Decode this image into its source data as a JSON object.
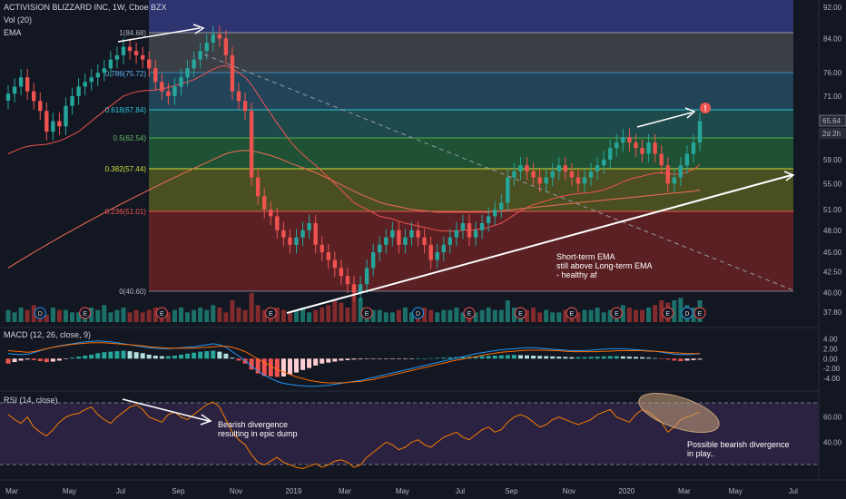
{
  "header": {
    "title": "ACTIVISION BLIZZARD INC, 1W, Cboe BZX",
    "vol": "Vol (20)",
    "ema": "EMA",
    "macd": "MACD (12, 26, close, 9)",
    "rsi": "RSI (14, close)"
  },
  "price_tags": {
    "last": "65.64",
    "countdown": "2d 2h"
  },
  "colors": {
    "bg": "#131722",
    "up": "#26a69a",
    "down": "#ef5350",
    "ema_short": "#ef5350",
    "ema_long": "#ef6c54",
    "macd_line": "#2196f3",
    "signal_line": "#ff6d00",
    "rsi_line": "#f57c00",
    "rsi_band": "#2a2240",
    "trend": "#ffffff"
  },
  "chart_data": [
    {
      "type": "candlestick",
      "title": "ACTIVISION BLIZZARD INC, 1W, Cboe BZX",
      "scale": "log",
      "x_tick_labels": [
        "Mar",
        "May",
        "Jul",
        "Sep",
        "Nov",
        "2019",
        "Mar",
        "May",
        "Jul",
        "Sep",
        "Nov",
        "2020",
        "Mar",
        "May",
        "Jul"
      ],
      "y_tick_labels": [
        "92.00",
        "84.00",
        "76.00",
        "71.00",
        "65.64",
        "59.00",
        "55.00",
        "51.00",
        "48.00",
        "45.00",
        "42.50",
        "40.00",
        "37.80"
      ],
      "ylim": [
        37.5,
        93
      ],
      "grid": false,
      "close_series": [
        71.5,
        73,
        75,
        72,
        70,
        68,
        64,
        66,
        65,
        69,
        71,
        73,
        74,
        75,
        76,
        77,
        79,
        80,
        82,
        81,
        80,
        79,
        77,
        74,
        72,
        71,
        73,
        75,
        77,
        79,
        81,
        83,
        85,
        84,
        80,
        72,
        70,
        68,
        56,
        53,
        51,
        50,
        48,
        47,
        46,
        47,
        48,
        49,
        46,
        45,
        44,
        43,
        42,
        41,
        40,
        41,
        43,
        45,
        46,
        47,
        48,
        46,
        47,
        48,
        47,
        46,
        44,
        45,
        46,
        47,
        48,
        49,
        47,
        48,
        49,
        50,
        51,
        52,
        56,
        57,
        58,
        57,
        56,
        55,
        56,
        57,
        58,
        57,
        56,
        55,
        56,
        57,
        58,
        59,
        61,
        62,
        63,
        62,
        61,
        60,
        62,
        60,
        58,
        55,
        56,
        58,
        60,
        62,
        66
      ],
      "ema_short": [
        60,
        60.5,
        61,
        61.3,
        61.5,
        61.6,
        61.7,
        62,
        62.3,
        62.8,
        63.4,
        64,
        65,
        66,
        67,
        68,
        69,
        70,
        71,
        71.5,
        71.9,
        72.1,
        72.2,
        72.3,
        72.5,
        72.8,
        73.2,
        73.6,
        74,
        74.5,
        75.2,
        76,
        76.8,
        77.4,
        77.6,
        76.9,
        76,
        75,
        73.4,
        71.3,
        69.3,
        67.4,
        65.6,
        63.9,
        62.3,
        61,
        59.9,
        58.9,
        58,
        57,
        56,
        55,
        54,
        53,
        52,
        51.5,
        51,
        50.5,
        50,
        49.8,
        49.6,
        49.3,
        49,
        48.8,
        48.6,
        48.4,
        48.2,
        48,
        47.9,
        47.9,
        47.9,
        48,
        48,
        48.1,
        48.2,
        48.4,
        48.7,
        49,
        49.6,
        50.2,
        50.8,
        51.3,
        51.7,
        52,
        52.3,
        52.6,
        52.9,
        53.1,
        53.3,
        53.4,
        53.5,
        53.6,
        53.8,
        54,
        54.4,
        54.8,
        55.3,
        55.7,
        56,
        56.2,
        56.5,
        56.7,
        56.8,
        56.6,
        56.5,
        56.6,
        56.9,
        57.3,
        58.1
      ],
      "ema_long": [
        43,
        43.5,
        44,
        44.5,
        45,
        45.5,
        46,
        46.5,
        47,
        47.5,
        48,
        48.5,
        49,
        49.5,
        50,
        50.5,
        51,
        51.5,
        52,
        52.5,
        53,
        53.5,
        54,
        54.5,
        55,
        55.5,
        56,
        56.5,
        57,
        57.5,
        58,
        58.5,
        59,
        59.5,
        60,
        60.3,
        60.5,
        60.6,
        60.5,
        60.3,
        60,
        59.7,
        59.3,
        58.9,
        58.4,
        58,
        57.6,
        57.2,
        56.8,
        56.3,
        55.8,
        55.3,
        54.8,
        54.3,
        53.8,
        53.3,
        52.9,
        52.5,
        52.1,
        51.8,
        51.6,
        51.4,
        51.2,
        51,
        50.9,
        50.8,
        50.7,
        50.6,
        50.6,
        50.6,
        50.6,
        50.6,
        50.6,
        50.6,
        50.6,
        50.6,
        50.7,
        50.8,
        50.9,
        51,
        51.1,
        51.2,
        51.3,
        51.4,
        51.5,
        51.6,
        51.7,
        51.8,
        51.9,
        52,
        52.1,
        52.2,
        52.3,
        52.4,
        52.5,
        52.6,
        52.7,
        52.8,
        52.9,
        53,
        53.1,
        53.2,
        53.3,
        53.4,
        53.5,
        53.6,
        53.7,
        53.8,
        54
      ],
      "fib_levels": [
        {
          "label": "1(84.68)",
          "value": 84.68
        },
        {
          "label": "0.786(75.72)",
          "value": 75.72
        },
        {
          "label": "0.618(67.84)",
          "value": 67.84
        },
        {
          "label": "0.5(62.54)",
          "value": 62.54
        },
        {
          "label": "0.382(57.44)",
          "value": 57.44
        },
        {
          "label": "0.236(51.01)",
          "value": 51.01
        },
        {
          "label": "0(40.60)",
          "value": 40.6
        }
      ],
      "event_markers": [
        "D",
        "E",
        "E",
        "E",
        "E",
        "D",
        "E",
        "E",
        "E",
        "E",
        "E",
        "D",
        "E"
      ],
      "annotations": [
        {
          "text": "Short-term EMA"
        },
        {
          "text": "still above Long-term EMA"
        },
        {
          "text": "- healthy af"
        }
      ]
    },
    {
      "type": "bar",
      "title": "Vol (20)",
      "values": [
        5,
        4,
        6,
        5,
        7,
        4,
        3,
        6,
        5,
        5,
        4,
        4,
        5,
        6,
        5,
        7,
        4,
        5,
        6,
        4,
        5,
        4,
        5,
        6,
        5,
        4,
        5,
        6,
        4,
        5,
        6,
        5,
        7,
        6,
        4,
        9,
        6,
        5,
        12,
        7,
        5,
        4,
        6,
        5,
        4,
        5,
        6,
        4,
        5,
        6,
        7,
        9,
        8,
        6,
        12,
        10,
        6,
        5,
        5,
        4,
        4,
        5,
        6,
        4,
        5,
        6,
        5,
        4,
        5,
        5,
        6,
        4,
        5,
        4,
        5,
        6,
        5,
        5,
        9,
        6,
        5,
        5,
        6,
        4,
        5,
        4,
        4,
        5,
        6,
        4,
        5,
        5,
        6,
        4,
        5,
        5,
        7,
        6,
        5,
        5,
        6,
        7,
        9,
        8,
        9,
        10,
        7,
        6,
        9
      ]
    },
    {
      "type": "bar",
      "title": "MACD (12, 26, close, 9)",
      "y_tick_labels": [
        "4.00",
        "2.00",
        "0.00",
        "-2.00",
        "-4.00"
      ],
      "ylim": [
        -6,
        5
      ],
      "series": [
        {
          "values": [
            -1,
            -0.7,
            -0.4,
            -0.2,
            -0.3,
            -0.5,
            -0.7,
            -0.6,
            -0.4,
            -0.1,
            0.2,
            0.4,
            0.6,
            0.8,
            1.1,
            1.3,
            1.4,
            1.5,
            1.6,
            1.5,
            1.3,
            1.1,
            0.8,
            0.6,
            0.5,
            0.5,
            0.6,
            0.8,
            1,
            1.2,
            1.4,
            1.5,
            1.6,
            1.4,
            1,
            0.2,
            -0.4,
            -1,
            -2.2,
            -3,
            -3.5,
            -3.6,
            -3.7,
            -3.6,
            -3.2,
            -2.8,
            -2.3,
            -1.9,
            -1.4,
            -1,
            -0.8,
            -0.6,
            -0.4,
            -0.3,
            -0.2,
            -0.15,
            -0.1,
            -0.08,
            -0.06,
            -0.05,
            -0.04,
            -0.03,
            -0.02,
            -0.01,
            0,
            0.05,
            0.1,
            0.15,
            0.2,
            0.25,
            0.3,
            0.35,
            0.4,
            0.45,
            0.5,
            0.55,
            0.6,
            0.65,
            0.7,
            0.75,
            0.7,
            0.65,
            0.6,
            0.55,
            0.5,
            0.45,
            0.4,
            0.35,
            0.3,
            0.3,
            0.3,
            0.35,
            0.4,
            0.45,
            0.5,
            0.5,
            0.45,
            0.4,
            0.35,
            0.3,
            0.2,
            0.1,
            -0.05,
            -0.2,
            -0.4,
            -0.5,
            -0.4,
            -0.3,
            -0.2
          ]
        },
        {
          "values": [
            1,
            0.9,
            0.8,
            0.9,
            1.2,
            1.6,
            2,
            2.3,
            2.6,
            2.8,
            3,
            3.2,
            3.4,
            3.5,
            3.6,
            3.5,
            3.4,
            3.2,
            3,
            2.8,
            2.6,
            2.4,
            2.2,
            2.1,
            2,
            2,
            2.1,
            2.2,
            2.3,
            2.4,
            2.6,
            2.8,
            3,
            2.8,
            2.3,
            1.4,
            0.5,
            -0.4,
            -1.5,
            -2.5,
            -3.4,
            -4,
            -4.6,
            -5,
            -5.2,
            -5.4,
            -5.5,
            -5.6,
            -5.6,
            -5.5,
            -5.4,
            -5.2,
            -5,
            -4.8,
            -4.6,
            -4.4,
            -4.1,
            -3.8,
            -3.5,
            -3.2,
            -2.9,
            -2.6,
            -2.3,
            -2,
            -1.7,
            -1.4,
            -1.1,
            -0.8,
            -0.5,
            -0.2,
            0.1,
            0.4,
            0.7,
            1,
            1.2,
            1.4,
            1.6,
            1.8,
            1.9,
            2,
            2.1,
            2.2,
            2.2,
            2.1,
            2,
            1.9,
            1.8,
            1.7,
            1.6,
            1.6,
            1.6,
            1.7,
            1.8,
            1.9,
            2,
            2,
            2,
            1.9,
            1.8,
            1.7,
            1.6,
            1.5,
            1.3,
            1.1,
            0.9,
            0.8,
            0.8,
            0.9,
            1
          ]
        },
        {
          "values": [
            1.6,
            1.5,
            1.4,
            1.3,
            1.4,
            1.7,
            2,
            2.3,
            2.5,
            2.7,
            2.9,
            3,
            3.1,
            3.2,
            3.2,
            3.2,
            3.1,
            3,
            2.9,
            2.8,
            2.7,
            2.6,
            2.4,
            2.3,
            2.2,
            2.1,
            2.1,
            2.1,
            2.1,
            2.1,
            2.2,
            2.3,
            2.4,
            2.5,
            2.5,
            2.3,
            1.9,
            1.4,
            0.7,
            -0.1,
            -0.8,
            -1.5,
            -2.2,
            -2.7,
            -3.2,
            -3.7,
            -4,
            -4.4,
            -4.6,
            -4.8,
            -4.9,
            -4.9,
            -4.9,
            -4.8,
            -4.7,
            -4.6,
            -4.4,
            -4.2,
            -3.9,
            -3.6,
            -3.3,
            -3,
            -2.7,
            -2.4,
            -2.1,
            -1.8,
            -1.5,
            -1.2,
            -0.9,
            -0.6,
            -0.3,
            -0.1,
            0.2,
            0.4,
            0.7,
            0.9,
            1.1,
            1.3,
            1.4,
            1.5,
            1.6,
            1.7,
            1.7,
            1.7,
            1.7,
            1.6,
            1.6,
            1.5,
            1.4,
            1.4,
            1.4,
            1.4,
            1.4,
            1.5,
            1.5,
            1.6,
            1.6,
            1.6,
            1.6,
            1.6,
            1.5,
            1.5,
            1.4,
            1.3,
            1.2,
            1.1,
            1,
            1,
            1
          ]
        }
      ]
    },
    {
      "type": "line",
      "title": "RSI (14, close)",
      "y_tick_labels": [
        "60.00",
        "40.00"
      ],
      "ylim": [
        10,
        80
      ],
      "values": [
        62,
        58,
        55,
        60,
        52,
        48,
        45,
        50,
        56,
        60,
        62,
        63,
        66,
        68,
        62,
        58,
        55,
        60,
        64,
        68,
        70,
        66,
        60,
        58,
        56,
        62,
        64,
        60,
        58,
        62,
        66,
        70,
        72,
        68,
        58,
        48,
        42,
        38,
        30,
        24,
        22,
        25,
        28,
        24,
        22,
        20,
        19,
        21,
        23,
        20,
        22,
        25,
        26,
        24,
        20,
        22,
        28,
        32,
        36,
        40,
        38,
        34,
        36,
        40,
        42,
        38,
        36,
        40,
        44,
        46,
        48,
        44,
        42,
        46,
        50,
        52,
        48,
        50,
        56,
        60,
        62,
        60,
        56,
        52,
        54,
        58,
        60,
        58,
        56,
        54,
        56,
        58,
        62,
        64,
        66,
        60,
        58,
        56,
        62,
        66,
        64,
        60,
        56,
        48,
        52,
        58,
        60,
        62,
        64
      ],
      "annotations": [
        {
          "text": "Bearish divergence"
        },
        {
          "text": "resulting in epic dump"
        },
        {
          "text": "Possible bearish divergence"
        },
        {
          "text": "in play.."
        }
      ]
    }
  ]
}
